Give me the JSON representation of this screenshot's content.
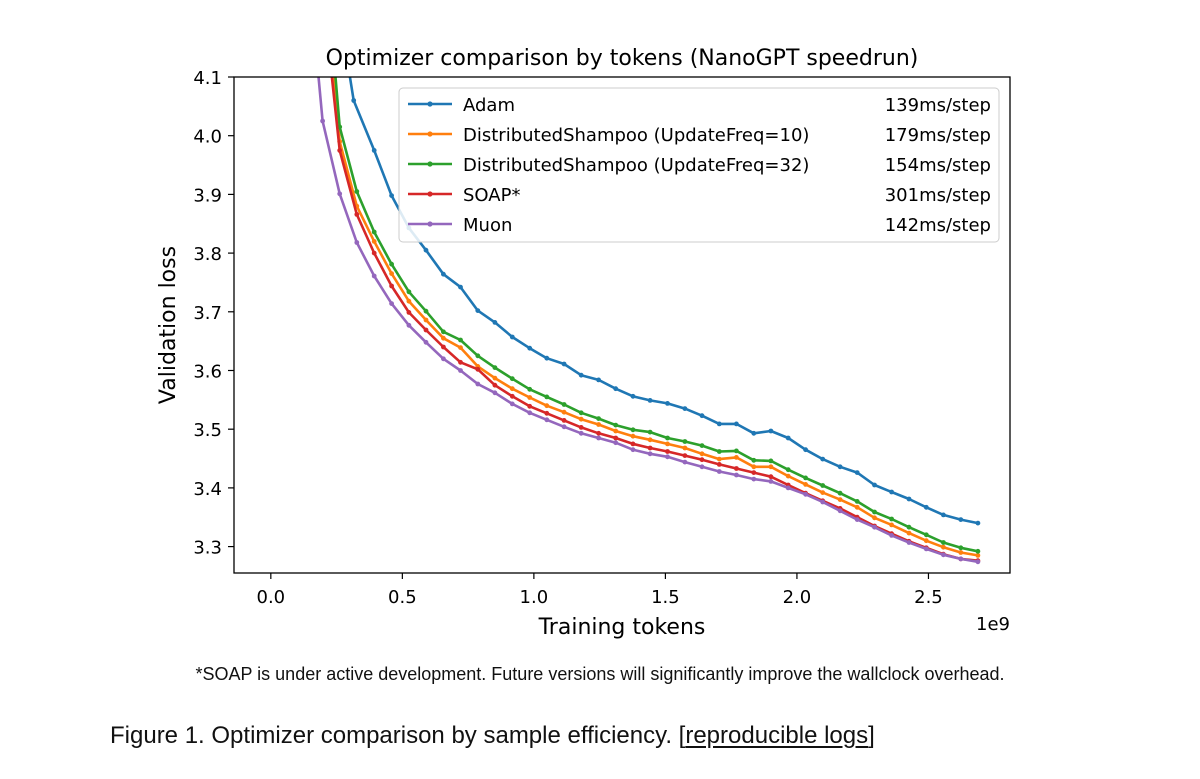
{
  "chart_data": {
    "type": "line",
    "title": "Optimizer comparison by tokens (NanoGPT speedrun)",
    "xlabel": "Training tokens",
    "ylabel": "Validation loss",
    "x_offset_label": "1e9",
    "xlim": [
      -0.14,
      2.81
    ],
    "ylim": [
      3.255,
      4.1
    ],
    "xticks": [
      0.0,
      0.5,
      1.0,
      1.5,
      2.0,
      2.5
    ],
    "xtick_labels": [
      "0.0",
      "0.5",
      "1.0",
      "1.5",
      "2.0",
      "2.5"
    ],
    "yticks": [
      3.3,
      3.4,
      3.5,
      3.6,
      3.7,
      3.8,
      3.9,
      4.0,
      4.1
    ],
    "ytick_labels": [
      "3.3",
      "3.4",
      "3.5",
      "3.6",
      "3.7",
      "3.8",
      "3.9",
      "4.0",
      "4.1"
    ],
    "grid": false,
    "legend_position": "upper-right",
    "series": [
      {
        "name": "Adam",
        "speed": "139ms/step",
        "color": "#1f77b4",
        "points": [
          [
            0.29,
            4.13
          ],
          [
            0.315,
            4.06
          ],
          [
            0.393,
            3.975
          ],
          [
            0.459,
            3.898
          ],
          [
            0.525,
            3.843
          ],
          [
            0.59,
            3.805
          ],
          [
            0.656,
            3.764
          ],
          [
            0.721,
            3.742
          ],
          [
            0.787,
            3.702
          ],
          [
            0.852,
            3.682
          ],
          [
            0.918,
            3.657
          ],
          [
            0.984,
            3.638
          ],
          [
            1.049,
            3.621
          ],
          [
            1.115,
            3.611
          ],
          [
            1.18,
            3.592
          ],
          [
            1.246,
            3.584
          ],
          [
            1.311,
            3.569
          ],
          [
            1.377,
            3.556
          ],
          [
            1.442,
            3.549
          ],
          [
            1.508,
            3.544
          ],
          [
            1.574,
            3.535
          ],
          [
            1.639,
            3.523
          ],
          [
            1.705,
            3.509
          ],
          [
            1.77,
            3.509
          ],
          [
            1.836,
            3.493
          ],
          [
            1.901,
            3.497
          ],
          [
            1.967,
            3.485
          ],
          [
            2.033,
            3.465
          ],
          [
            2.098,
            3.449
          ],
          [
            2.164,
            3.436
          ],
          [
            2.229,
            3.426
          ],
          [
            2.295,
            3.405
          ],
          [
            2.36,
            3.393
          ],
          [
            2.426,
            3.381
          ],
          [
            2.492,
            3.367
          ],
          [
            2.557,
            3.354
          ],
          [
            2.623,
            3.346
          ],
          [
            2.688,
            3.34
          ]
        ]
      },
      {
        "name": "DistributedShampoo (UpdateFreq=10)",
        "speed": "179ms/step",
        "color": "#ff7f0e",
        "points": [
          [
            0.232,
            4.13
          ],
          [
            0.262,
            3.99
          ],
          [
            0.327,
            3.88
          ],
          [
            0.393,
            3.82
          ],
          [
            0.459,
            3.765
          ],
          [
            0.525,
            3.718
          ],
          [
            0.59,
            3.686
          ],
          [
            0.656,
            3.655
          ],
          [
            0.721,
            3.639
          ],
          [
            0.787,
            3.607
          ],
          [
            0.852,
            3.587
          ],
          [
            0.918,
            3.569
          ],
          [
            0.984,
            3.554
          ],
          [
            1.049,
            3.54
          ],
          [
            1.115,
            3.529
          ],
          [
            1.18,
            3.517
          ],
          [
            1.246,
            3.508
          ],
          [
            1.311,
            3.497
          ],
          [
            1.377,
            3.488
          ],
          [
            1.442,
            3.482
          ],
          [
            1.508,
            3.475
          ],
          [
            1.574,
            3.468
          ],
          [
            1.639,
            3.458
          ],
          [
            1.705,
            3.449
          ],
          [
            1.77,
            3.452
          ],
          [
            1.836,
            3.436
          ],
          [
            1.901,
            3.436
          ],
          [
            1.967,
            3.42
          ],
          [
            2.033,
            3.406
          ],
          [
            2.098,
            3.392
          ],
          [
            2.164,
            3.38
          ],
          [
            2.229,
            3.367
          ],
          [
            2.295,
            3.349
          ],
          [
            2.36,
            3.337
          ],
          [
            2.426,
            3.323
          ],
          [
            2.492,
            3.31
          ],
          [
            2.557,
            3.299
          ],
          [
            2.623,
            3.29
          ],
          [
            2.688,
            3.285
          ]
        ]
      },
      {
        "name": "DistributedShampoo (UpdateFreq=32)",
        "speed": "154ms/step",
        "color": "#2ca02c",
        "points": [
          [
            0.24,
            4.13
          ],
          [
            0.262,
            4.015
          ],
          [
            0.327,
            3.905
          ],
          [
            0.393,
            3.836
          ],
          [
            0.459,
            3.781
          ],
          [
            0.525,
            3.734
          ],
          [
            0.59,
            3.701
          ],
          [
            0.656,
            3.666
          ],
          [
            0.721,
            3.652
          ],
          [
            0.787,
            3.625
          ],
          [
            0.852,
            3.605
          ],
          [
            0.918,
            3.586
          ],
          [
            0.984,
            3.568
          ],
          [
            1.049,
            3.555
          ],
          [
            1.115,
            3.542
          ],
          [
            1.18,
            3.528
          ],
          [
            1.246,
            3.518
          ],
          [
            1.311,
            3.507
          ],
          [
            1.377,
            3.499
          ],
          [
            1.442,
            3.495
          ],
          [
            1.508,
            3.485
          ],
          [
            1.574,
            3.479
          ],
          [
            1.639,
            3.472
          ],
          [
            1.705,
            3.462
          ],
          [
            1.77,
            3.463
          ],
          [
            1.836,
            3.447
          ],
          [
            1.901,
            3.446
          ],
          [
            1.967,
            3.431
          ],
          [
            2.033,
            3.417
          ],
          [
            2.098,
            3.404
          ],
          [
            2.164,
            3.391
          ],
          [
            2.229,
            3.377
          ],
          [
            2.295,
            3.359
          ],
          [
            2.36,
            3.347
          ],
          [
            2.426,
            3.333
          ],
          [
            2.492,
            3.32
          ],
          [
            2.557,
            3.307
          ],
          [
            2.623,
            3.298
          ],
          [
            2.688,
            3.292
          ]
        ]
      },
      {
        "name": "SOAP*",
        "speed": "301ms/step",
        "color": "#d62728",
        "points": [
          [
            0.225,
            4.13
          ],
          [
            0.262,
            3.975
          ],
          [
            0.327,
            3.866
          ],
          [
            0.393,
            3.8
          ],
          [
            0.459,
            3.744
          ],
          [
            0.525,
            3.699
          ],
          [
            0.59,
            3.669
          ],
          [
            0.656,
            3.64
          ],
          [
            0.721,
            3.614
          ],
          [
            0.787,
            3.602
          ],
          [
            0.852,
            3.575
          ],
          [
            0.918,
            3.556
          ],
          [
            0.984,
            3.539
          ],
          [
            1.049,
            3.527
          ],
          [
            1.115,
            3.515
          ],
          [
            1.18,
            3.503
          ],
          [
            1.246,
            3.493
          ],
          [
            1.311,
            3.485
          ],
          [
            1.377,
            3.475
          ],
          [
            1.442,
            3.468
          ],
          [
            1.508,
            3.462
          ],
          [
            1.574,
            3.455
          ],
          [
            1.639,
            3.448
          ],
          [
            1.705,
            3.44
          ],
          [
            1.77,
            3.433
          ],
          [
            1.836,
            3.426
          ],
          [
            1.901,
            3.419
          ],
          [
            1.967,
            3.405
          ],
          [
            2.033,
            3.391
          ],
          [
            2.098,
            3.378
          ],
          [
            2.164,
            3.365
          ],
          [
            2.229,
            3.35
          ],
          [
            2.295,
            3.335
          ],
          [
            2.36,
            3.322
          ],
          [
            2.426,
            3.309
          ],
          [
            2.492,
            3.298
          ],
          [
            2.557,
            3.287
          ],
          [
            2.623,
            3.279
          ],
          [
            2.688,
            3.276
          ]
        ]
      },
      {
        "name": "Muon",
        "speed": "142ms/step",
        "color": "#9467bd",
        "points": [
          [
            0.175,
            4.13
          ],
          [
            0.197,
            4.025
          ],
          [
            0.262,
            3.901
          ],
          [
            0.327,
            3.818
          ],
          [
            0.393,
            3.761
          ],
          [
            0.459,
            3.714
          ],
          [
            0.525,
            3.677
          ],
          [
            0.59,
            3.648
          ],
          [
            0.656,
            3.62
          ],
          [
            0.721,
            3.6
          ],
          [
            0.787,
            3.577
          ],
          [
            0.852,
            3.562
          ],
          [
            0.918,
            3.543
          ],
          [
            0.984,
            3.528
          ],
          [
            1.049,
            3.516
          ],
          [
            1.115,
            3.504
          ],
          [
            1.18,
            3.493
          ],
          [
            1.246,
            3.485
          ],
          [
            1.311,
            3.477
          ],
          [
            1.377,
            3.465
          ],
          [
            1.442,
            3.458
          ],
          [
            1.508,
            3.453
          ],
          [
            1.574,
            3.444
          ],
          [
            1.639,
            3.436
          ],
          [
            1.705,
            3.428
          ],
          [
            1.77,
            3.422
          ],
          [
            1.836,
            3.415
          ],
          [
            1.901,
            3.411
          ],
          [
            1.967,
            3.4
          ],
          [
            2.033,
            3.389
          ],
          [
            2.098,
            3.376
          ],
          [
            2.164,
            3.361
          ],
          [
            2.229,
            3.346
          ],
          [
            2.295,
            3.333
          ],
          [
            2.36,
            3.319
          ],
          [
            2.426,
            3.307
          ],
          [
            2.492,
            3.296
          ],
          [
            2.557,
            3.286
          ],
          [
            2.623,
            3.279
          ],
          [
            2.688,
            3.274
          ]
        ]
      }
    ]
  },
  "footnote": "*SOAP is under active development. Future versions will significantly improve the wallclock overhead.",
  "caption": {
    "text": "Figure 1. Optimizer comparison by sample efficiency. [",
    "link": "reproducible logs",
    "close": "]"
  }
}
